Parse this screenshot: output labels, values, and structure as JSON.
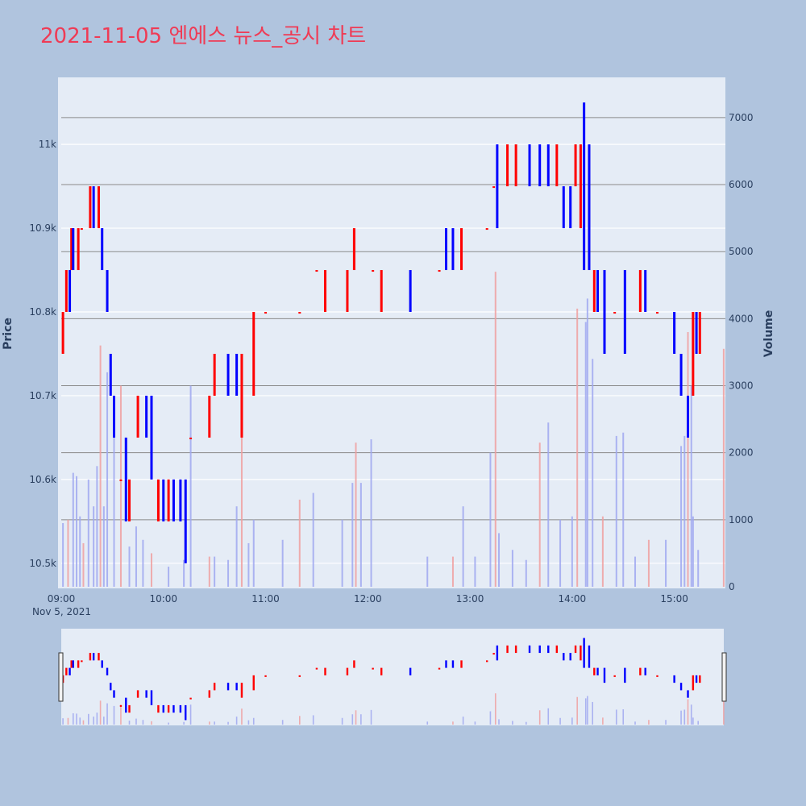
{
  "chart_data": {
    "type": "candlestick",
    "title": "2021-11-05 엔에스 뉴스_공시 차트",
    "date_label": "Nov 5, 2021",
    "ylabel_left": "Price",
    "ylabel_right": "Volume",
    "y_price_ticks": [
      "10.5k",
      "10.6k",
      "10.7k",
      "10.8k",
      "10.9k",
      "11k"
    ],
    "y_price_values": [
      10500,
      10600,
      10700,
      10800,
      10900,
      11000
    ],
    "y_price_range": [
      10470,
      11080
    ],
    "y_volume_ticks": [
      "0",
      "1000",
      "2000",
      "3000",
      "4000",
      "5000",
      "6000",
      "7000"
    ],
    "y_volume_values": [
      0,
      1000,
      2000,
      3000,
      4000,
      5000,
      6000,
      7000
    ],
    "y_volume_range": [
      0,
      7600
    ],
    "x_ticks": [
      "09:00",
      "10:00",
      "11:00",
      "12:00",
      "13:00",
      "14:00",
      "15:00"
    ],
    "x_range": [
      "09:00",
      "15:30"
    ],
    "colors": {
      "up": "#ff0000",
      "down": "#0000ff",
      "plot_bg": "#e5ecf6",
      "page_bg": "#b0c4de",
      "title": "#ef3b55"
    },
    "candles": [
      {
        "t": "09:01",
        "o": 10750,
        "c": 10800
      },
      {
        "t": "09:03",
        "o": 10800,
        "c": 10850
      },
      {
        "t": "09:05",
        "o": 10850,
        "c": 10800
      },
      {
        "t": "09:06",
        "o": 10850,
        "c": 10900
      },
      {
        "t": "09:07",
        "o": 10900,
        "c": 10850
      },
      {
        "t": "09:10",
        "o": 10850,
        "c": 10900
      },
      {
        "t": "09:12",
        "o": 10900,
        "c": 10900
      },
      {
        "t": "09:17",
        "o": 10900,
        "c": 10950
      },
      {
        "t": "09:19",
        "o": 10950,
        "c": 10900
      },
      {
        "t": "09:22",
        "o": 10900,
        "c": 10950
      },
      {
        "t": "09:24",
        "o": 10900,
        "c": 10850
      },
      {
        "t": "09:27",
        "o": 10850,
        "c": 10800
      },
      {
        "t": "09:29",
        "o": 10750,
        "c": 10700
      },
      {
        "t": "09:31",
        "o": 10700,
        "c": 10650
      },
      {
        "t": "09:35",
        "o": 10600,
        "c": 10600
      },
      {
        "t": "09:38",
        "o": 10650,
        "c": 10550
      },
      {
        "t": "09:40",
        "o": 10550,
        "c": 10600
      },
      {
        "t": "09:45",
        "o": 10650,
        "c": 10700
      },
      {
        "t": "09:50",
        "o": 10700,
        "c": 10650
      },
      {
        "t": "09:53",
        "o": 10700,
        "c": 10600
      },
      {
        "t": "09:57",
        "o": 10550,
        "c": 10600
      },
      {
        "t": "10:00",
        "o": 10600,
        "c": 10550
      },
      {
        "t": "10:03",
        "o": 10550,
        "c": 10600
      },
      {
        "t": "10:06",
        "o": 10600,
        "c": 10550
      },
      {
        "t": "10:10",
        "o": 10600,
        "c": 10550
      },
      {
        "t": "10:13",
        "o": 10600,
        "c": 10500
      },
      {
        "t": "10:16",
        "o": 10650,
        "c": 10650
      },
      {
        "t": "10:27",
        "o": 10650,
        "c": 10700
      },
      {
        "t": "10:30",
        "o": 10700,
        "c": 10750
      },
      {
        "t": "10:38",
        "o": 10750,
        "c": 10700
      },
      {
        "t": "10:43",
        "o": 10750,
        "c": 10700
      },
      {
        "t": "10:46",
        "o": 10650,
        "c": 10750
      },
      {
        "t": "10:53",
        "o": 10700,
        "c": 10800
      },
      {
        "t": "11:00",
        "o": 10800,
        "c": 10800
      },
      {
        "t": "11:20",
        "o": 10800,
        "c": 10800
      },
      {
        "t": "11:30",
        "o": 10850,
        "c": 10850
      },
      {
        "t": "11:35",
        "o": 10800,
        "c": 10850
      },
      {
        "t": "11:48",
        "o": 10800,
        "c": 10850
      },
      {
        "t": "11:52",
        "o": 10850,
        "c": 10900
      },
      {
        "t": "12:03",
        "o": 10850,
        "c": 10850
      },
      {
        "t": "12:08",
        "o": 10800,
        "c": 10850
      },
      {
        "t": "12:25",
        "o": 10850,
        "c": 10800
      },
      {
        "t": "12:42",
        "o": 10850,
        "c": 10850
      },
      {
        "t": "12:46",
        "o": 10900,
        "c": 10850
      },
      {
        "t": "12:50",
        "o": 10900,
        "c": 10850
      },
      {
        "t": "12:55",
        "o": 10850,
        "c": 10900
      },
      {
        "t": "13:10",
        "o": 10900,
        "c": 10900
      },
      {
        "t": "13:14",
        "o": 10950,
        "c": 10950
      },
      {
        "t": "13:16",
        "o": 11000,
        "c": 10900
      },
      {
        "t": "13:22",
        "o": 10950,
        "c": 11000
      },
      {
        "t": "13:27",
        "o": 10950,
        "c": 11000
      },
      {
        "t": "13:35",
        "o": 11000,
        "c": 10950
      },
      {
        "t": "13:41",
        "o": 11000,
        "c": 10950
      },
      {
        "t": "13:46",
        "o": 11000,
        "c": 10950
      },
      {
        "t": "13:51",
        "o": 10950,
        "c": 11000
      },
      {
        "t": "13:55",
        "o": 10950,
        "c": 10900
      },
      {
        "t": "13:59",
        "o": 10950,
        "c": 10900
      },
      {
        "t": "14:02",
        "o": 10950,
        "c": 11000
      },
      {
        "t": "14:05",
        "o": 10900,
        "c": 11000
      },
      {
        "t": "14:07",
        "o": 11050,
        "c": 10850
      },
      {
        "t": "14:10",
        "o": 11000,
        "c": 10850
      },
      {
        "t": "14:13",
        "o": 10800,
        "c": 10850
      },
      {
        "t": "14:15",
        "o": 10850,
        "c": 10800
      },
      {
        "t": "14:19",
        "o": 10850,
        "c": 10750
      },
      {
        "t": "14:25",
        "o": 10800,
        "c": 10800
      },
      {
        "t": "14:31",
        "o": 10850,
        "c": 10750
      },
      {
        "t": "14:40",
        "o": 10800,
        "c": 10850
      },
      {
        "t": "14:43",
        "o": 10850,
        "c": 10800
      },
      {
        "t": "14:50",
        "o": 10800,
        "c": 10800
      },
      {
        "t": "15:00",
        "o": 10800,
        "c": 10750
      },
      {
        "t": "15:04",
        "o": 10750,
        "c": 10700
      },
      {
        "t": "15:08",
        "o": 10700,
        "c": 10650
      },
      {
        "t": "15:11",
        "o": 10700,
        "c": 10800
      },
      {
        "t": "15:13",
        "o": 10800,
        "c": 10750
      },
      {
        "t": "15:15",
        "o": 10750,
        "c": 10800
      }
    ],
    "volumes": [
      {
        "t": "09:01",
        "v": 950
      },
      {
        "t": "09:04",
        "v": 1000
      },
      {
        "t": "09:07",
        "v": 1700
      },
      {
        "t": "09:09",
        "v": 1650
      },
      {
        "t": "09:11",
        "v": 1050
      },
      {
        "t": "09:13",
        "v": 650
      },
      {
        "t": "09:16",
        "v": 1600
      },
      {
        "t": "09:19",
        "v": 1200
      },
      {
        "t": "09:21",
        "v": 1800
      },
      {
        "t": "09:23",
        "v": 3600
      },
      {
        "t": "09:25",
        "v": 1200
      },
      {
        "t": "09:27",
        "v": 3200
      },
      {
        "t": "09:31",
        "v": 2800
      },
      {
        "t": "09:35",
        "v": 3000
      },
      {
        "t": "09:40",
        "v": 600
      },
      {
        "t": "09:44",
        "v": 900
      },
      {
        "t": "09:48",
        "v": 700
      },
      {
        "t": "09:53",
        "v": 500
      },
      {
        "t": "10:03",
        "v": 300
      },
      {
        "t": "10:12",
        "v": 400
      },
      {
        "t": "10:16",
        "v": 3000
      },
      {
        "t": "10:27",
        "v": 450
      },
      {
        "t": "10:30",
        "v": 450
      },
      {
        "t": "10:38",
        "v": 400
      },
      {
        "t": "10:43",
        "v": 1200
      },
      {
        "t": "10:46",
        "v": 2400
      },
      {
        "t": "10:50",
        "v": 650
      },
      {
        "t": "10:53",
        "v": 1000
      },
      {
        "t": "11:10",
        "v": 700
      },
      {
        "t": "11:20",
        "v": 1300
      },
      {
        "t": "11:28",
        "v": 1400
      },
      {
        "t": "11:45",
        "v": 1000
      },
      {
        "t": "11:51",
        "v": 1550
      },
      {
        "t": "11:53",
        "v": 2150
      },
      {
        "t": "11:56",
        "v": 1550
      },
      {
        "t": "12:02",
        "v": 2200
      },
      {
        "t": "12:35",
        "v": 450
      },
      {
        "t": "12:50",
        "v": 450
      },
      {
        "t": "12:56",
        "v": 1200
      },
      {
        "t": "13:03",
        "v": 450
      },
      {
        "t": "13:12",
        "v": 2000
      },
      {
        "t": "13:15",
        "v": 4700
      },
      {
        "t": "13:17",
        "v": 800
      },
      {
        "t": "13:25",
        "v": 550
      },
      {
        "t": "13:33",
        "v": 400
      },
      {
        "t": "13:41",
        "v": 2150
      },
      {
        "t": "13:46",
        "v": 2450
      },
      {
        "t": "13:53",
        "v": 1000
      },
      {
        "t": "14:00",
        "v": 1050
      },
      {
        "t": "14:03",
        "v": 4150
      },
      {
        "t": "14:08",
        "v": 3950
      },
      {
        "t": "14:09",
        "v": 4300
      },
      {
        "t": "14:12",
        "v": 3400
      },
      {
        "t": "14:18",
        "v": 1050
      },
      {
        "t": "14:26",
        "v": 2250
      },
      {
        "t": "14:30",
        "v": 2300
      },
      {
        "t": "14:37",
        "v": 450
      },
      {
        "t": "14:45",
        "v": 700
      },
      {
        "t": "14:55",
        "v": 700
      },
      {
        "t": "15:04",
        "v": 2100
      },
      {
        "t": "15:06",
        "v": 2250
      },
      {
        "t": "15:08",
        "v": 3800
      },
      {
        "t": "15:10",
        "v": 3000
      },
      {
        "t": "15:11",
        "v": 1050
      },
      {
        "t": "15:14",
        "v": 550
      },
      {
        "t": "15:29",
        "v": 3550
      }
    ]
  }
}
